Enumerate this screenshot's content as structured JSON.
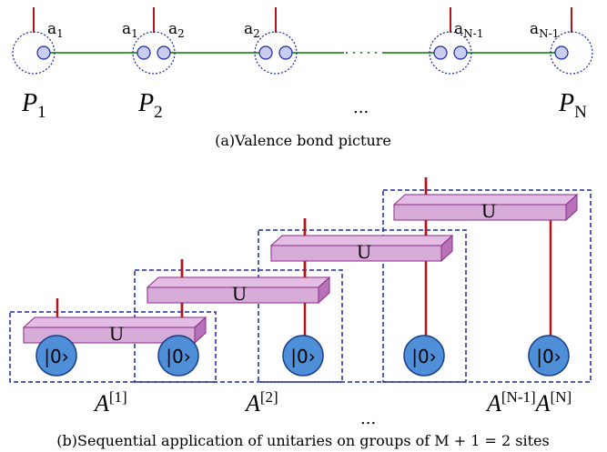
{
  "caption_a": "(a)Valence bond picture",
  "caption_b": "(b)Sequential application of unitaries on groups of M + 1 = 2 sites",
  "top": {
    "label_a1": "a",
    "sub_1": "1",
    "label_a2": "a",
    "sub_2": "2",
    "sub_n1": "N-1",
    "p1_letter": "P",
    "p1_sub": "1",
    "p2_letter": "P",
    "p2_sub": "2",
    "pn_letter": "P",
    "pn_sub": "N",
    "ellipsis": "..."
  },
  "bottom": {
    "unitary_label": "U",
    "ket_label": "|0›",
    "a_letter": "A",
    "sup_1": "[1]",
    "sup_2": "[2]",
    "sup_n1": "[N-1]",
    "sup_n": "[N]",
    "ellipsis": "..."
  },
  "colors": {
    "leg": "#b0151d",
    "bond": "#3f9a3a",
    "circle_fill": "#c9cdf0",
    "circle_stroke": "#1b2a9e",
    "slab_top": "#d8acd8",
    "slab_side": "#b873b8",
    "slab_stroke": "#8a2a8a",
    "ket_fill": "#4f8fd8",
    "ket_stroke": "#1a3f8a",
    "box_dash": "#1a2a9a"
  }
}
